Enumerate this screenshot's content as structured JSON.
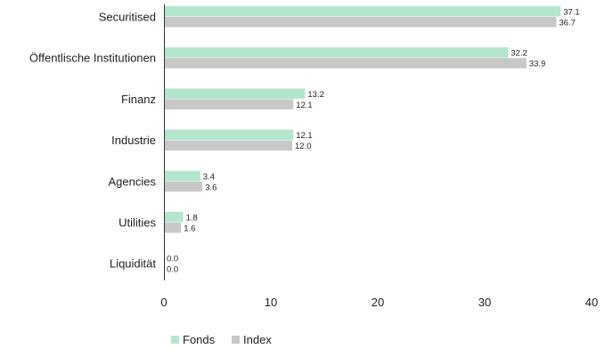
{
  "chart_data": {
    "type": "bar",
    "orientation": "horizontal",
    "categories": [
      "Securitised",
      "Öffentlische Institutionen",
      "Finanz",
      "Industrie",
      "Agencies",
      "Utilities",
      "Liquidität"
    ],
    "series": [
      {
        "name": "Fonds",
        "color": "#b3e6cc",
        "values": [
          37.1,
          32.2,
          13.2,
          12.1,
          3.4,
          1.8,
          0.0
        ],
        "labels": [
          "37.1",
          "32.2",
          "13.2",
          "12.1",
          "3.4",
          "1.8",
          "0.0"
        ]
      },
      {
        "name": "Index",
        "color": "#c8c8c8",
        "values": [
          36.7,
          33.9,
          12.1,
          12.0,
          3.6,
          1.6,
          0.0
        ],
        "labels": [
          "36.7",
          "33.9",
          "12.1",
          "12.0",
          "3.6",
          "1.6",
          "0.0"
        ]
      }
    ],
    "xlim": [
      0,
      40
    ],
    "xticks": [
      0,
      10,
      20,
      30,
      40
    ],
    "grid": false,
    "legend": "bottom"
  }
}
